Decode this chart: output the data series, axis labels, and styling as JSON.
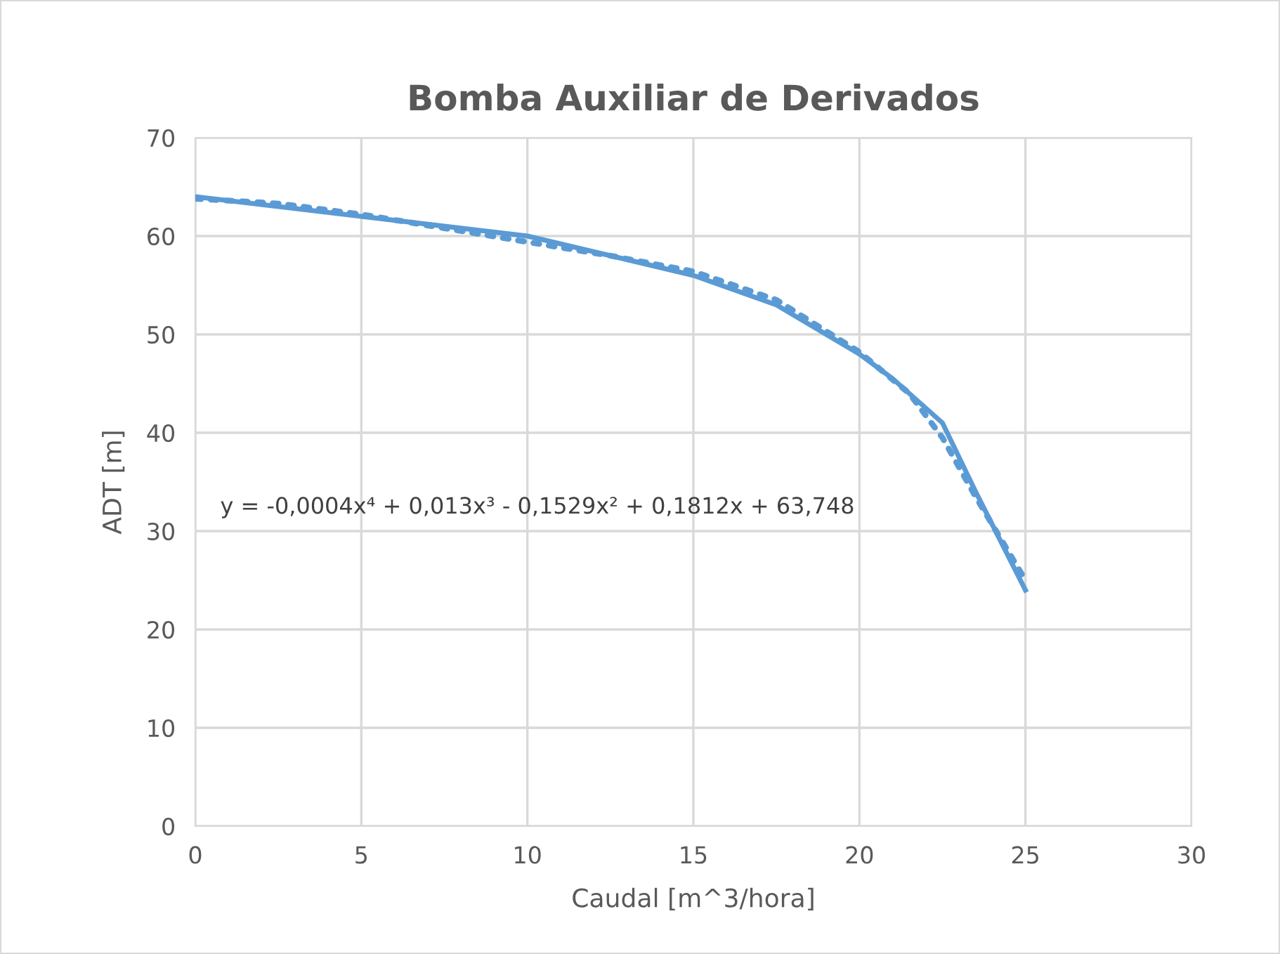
{
  "chart_data": {
    "type": "line",
    "title": "Bomba Auxiliar de Derivados",
    "xlabel": "Caudal [m^3/hora]",
    "ylabel": "ADT [m]",
    "x": [
      0,
      5,
      10,
      15,
      17.5,
      20,
      21,
      22.5,
      23.5,
      25
    ],
    "series": [
      {
        "color": "#5b9bd5",
        "values": [
          64,
          62,
          60,
          56,
          53,
          48,
          45.5,
          41,
          34,
          24
        ],
        "line_style": "solid"
      },
      {
        "color": "#5b9bd5",
        "x": [
          0,
          2.5,
          5,
          7.5,
          10,
          12.5,
          15,
          17.5,
          20,
          21.5,
          22.5,
          23.5,
          25
        ],
        "values": [
          63.8,
          63.3,
          62.2,
          60.8,
          59.4,
          58,
          56.4,
          53.5,
          48.2,
          44,
          39.5,
          33.5,
          25
        ],
        "line_style": "dotted"
      }
    ],
    "annotations": [
      "y = -0,0004x⁴ + 0,013x³ - 0,1529x² + 0,1812x + 63,748"
    ],
    "xlim": [
      0,
      30
    ],
    "xticks": [
      0,
      5,
      10,
      15,
      20,
      25,
      30
    ],
    "ylim": [
      0,
      70
    ],
    "yticks": [
      0,
      10,
      20,
      30,
      40,
      50,
      60,
      70
    ],
    "grid": true,
    "legend": false,
    "marker": "none"
  }
}
